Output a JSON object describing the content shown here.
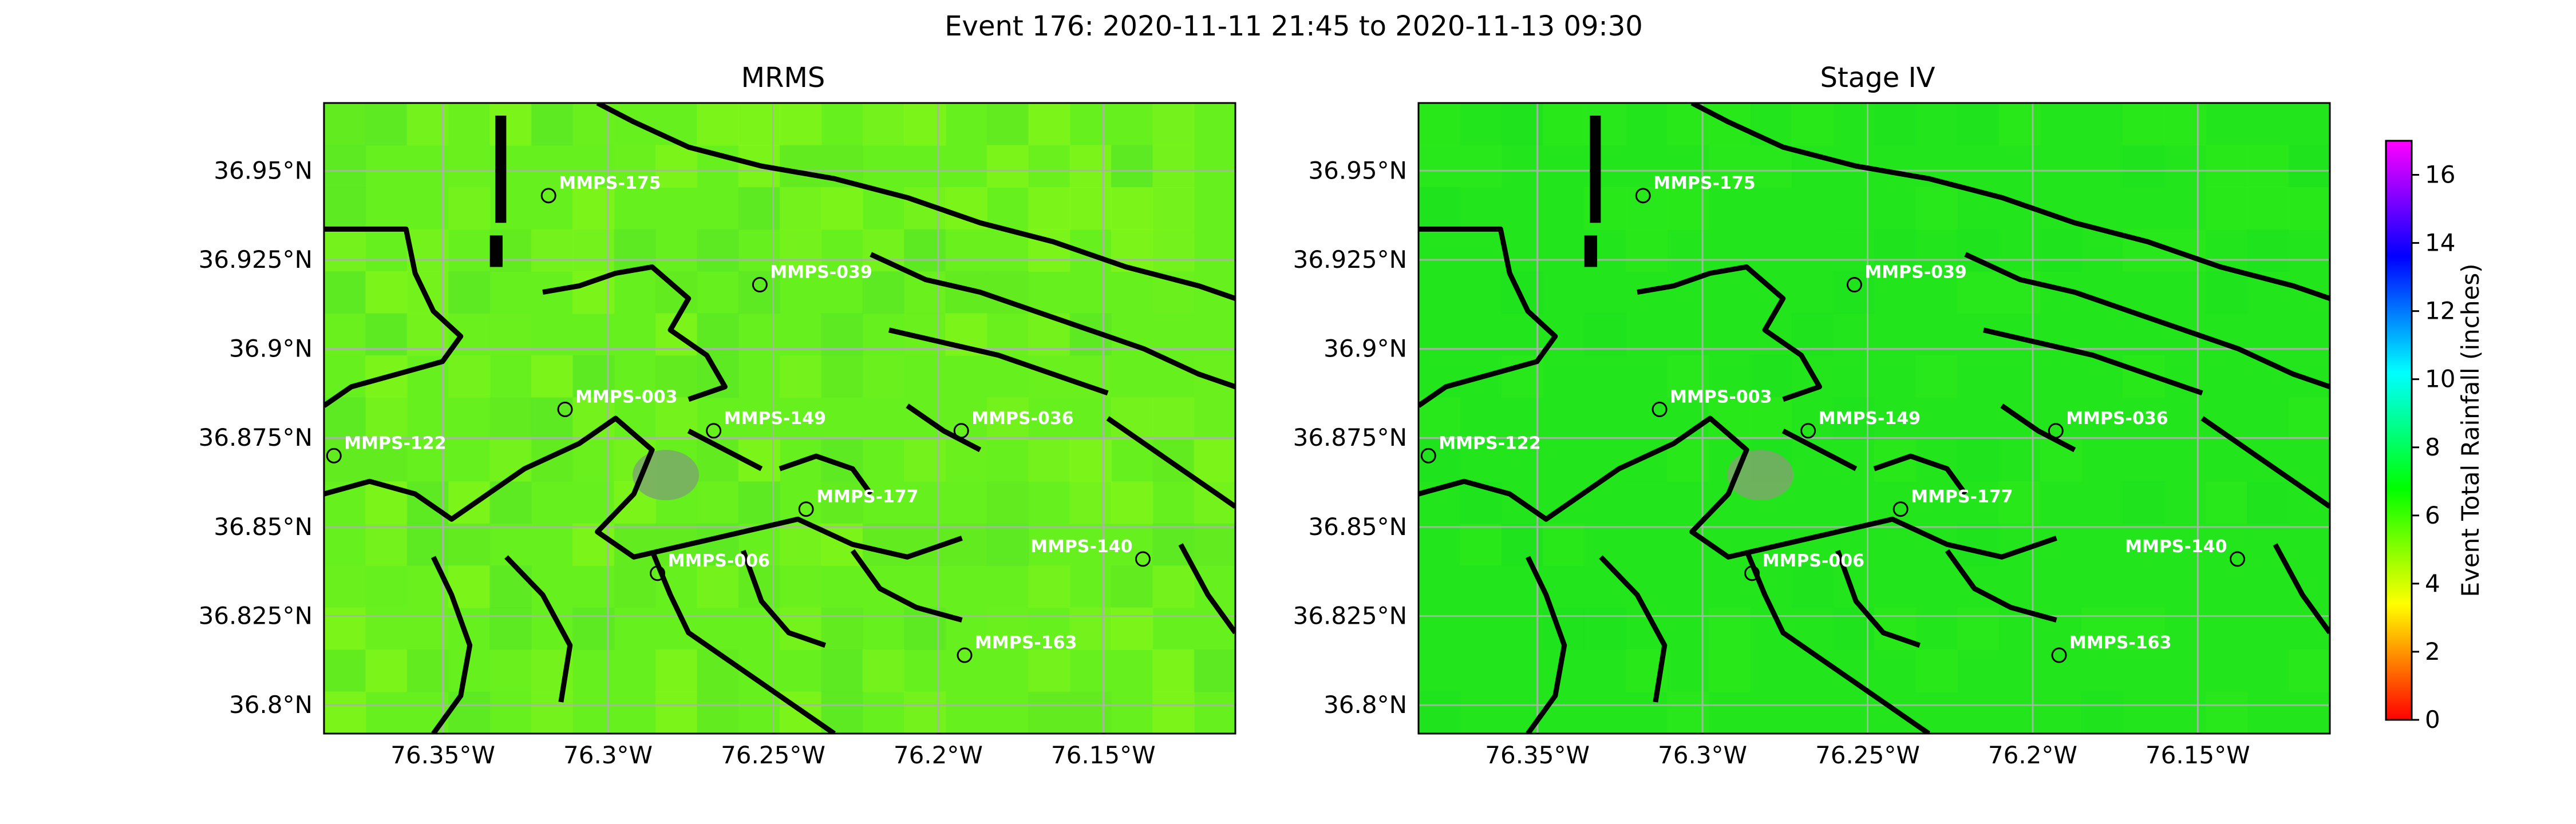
{
  "figure": {
    "title": "Event 176: 2020-11-11 21:45 to 2020-11-13 09:30"
  },
  "colorbar": {
    "label": "Event Total Rainfall (inches)",
    "ticks": [
      "0",
      "2",
      "4",
      "6",
      "8",
      "10",
      "12",
      "14",
      "16"
    ],
    "range": [
      0,
      17
    ],
    "colormap": [
      "#ff0000",
      "#ffff00",
      "#00ff00",
      "#00ffff",
      "#0000ff",
      "#ff00ff"
    ]
  },
  "axes": {
    "lon_ticks": [
      "76.35°W",
      "76.3°W",
      "76.25°W",
      "76.2°W",
      "76.15°W"
    ],
    "lat_ticks": [
      "36.95°N",
      "36.925°N",
      "36.9°N",
      "36.875°N",
      "36.85°N",
      "36.825°N",
      "36.8°N"
    ]
  },
  "panels": [
    {
      "title": "MRMS",
      "base_color": "#66f01e",
      "mean_rainfall_in": 6.2
    },
    {
      "title": "Stage IV",
      "base_color": "#22e61b",
      "mean_rainfall_in": 6.9
    }
  ],
  "stations": [
    {
      "name": "MMPS-175",
      "lon": -76.318,
      "lat": 36.943,
      "label_side": "right"
    },
    {
      "name": "MMPS-039",
      "lon": -76.254,
      "lat": 36.918,
      "label_side": "right"
    },
    {
      "name": "MMPS-003",
      "lon": -76.313,
      "lat": 36.883,
      "label_side": "right"
    },
    {
      "name": "MMPS-149",
      "lon": -76.268,
      "lat": 36.877,
      "label_side": "right"
    },
    {
      "name": "MMPS-036",
      "lon": -76.193,
      "lat": 36.877,
      "label_side": "right"
    },
    {
      "name": "MMPS-122",
      "lon": -76.383,
      "lat": 36.87,
      "label_side": "right"
    },
    {
      "name": "MMPS-177",
      "lon": -76.24,
      "lat": 36.855,
      "label_side": "right"
    },
    {
      "name": "MMPS-140",
      "lon": -76.138,
      "lat": 36.841,
      "label_side": "left"
    },
    {
      "name": "MMPS-006",
      "lon": -76.285,
      "lat": 36.837,
      "label_side": "right"
    },
    {
      "name": "MMPS-163",
      "lon": -76.192,
      "lat": 36.814,
      "label_side": "right"
    }
  ]
}
